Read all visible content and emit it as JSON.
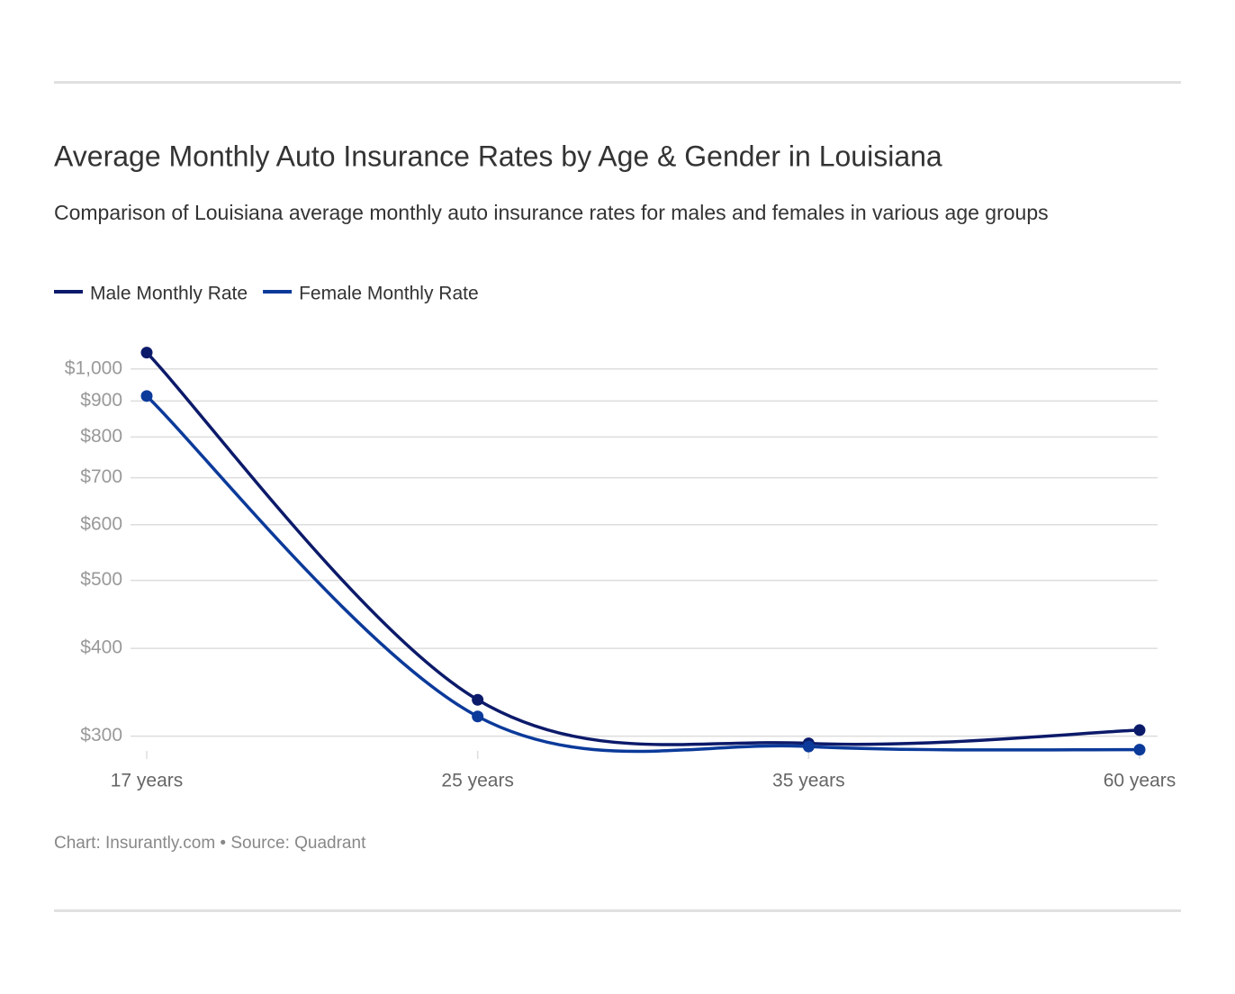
{
  "chart_data": {
    "type": "line",
    "title": "Average Monthly Auto Insurance Rates by Age & Gender in Louisiana",
    "subtitle": "Comparison of Louisiana average monthly auto insurance rates for males and females in various age groups",
    "source": "Chart: Insurantly.com • Source: Quadrant",
    "categories": [
      "17 years",
      "25 years",
      "35 years",
      "60 years"
    ],
    "series": [
      {
        "name": "Male Monthly Rate",
        "color": "#0c1a6a",
        "values": [
          1055,
          338,
          293,
          306
        ]
      },
      {
        "name": "Female Monthly Rate",
        "color": "#0b3a9a",
        "values": [
          915,
          320,
          290,
          287
        ]
      }
    ],
    "yscale": "log",
    "ylim": [
      280,
      1060
    ],
    "yticks": [
      {
        "value": 300,
        "label": "$300"
      },
      {
        "value": 400,
        "label": "$400"
      },
      {
        "value": 500,
        "label": "$500"
      },
      {
        "value": 600,
        "label": "$600"
      },
      {
        "value": 700,
        "label": "$700"
      },
      {
        "value": 800,
        "label": "$800"
      },
      {
        "value": 900,
        "label": "$900"
      },
      {
        "value": 1000,
        "label": "$1,000"
      }
    ],
    "grid": true,
    "legend": "top-left"
  }
}
